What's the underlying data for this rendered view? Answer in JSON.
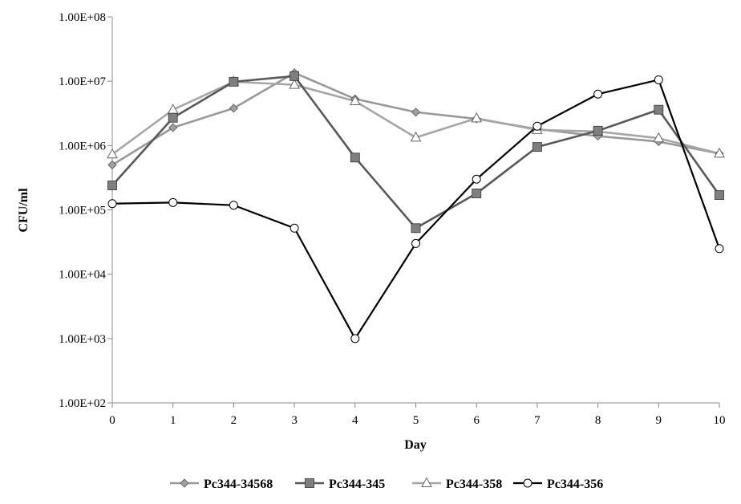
{
  "chart_data": {
    "type": "line",
    "title": "",
    "xlabel": "Day",
    "ylabel": "CFU/ml",
    "x": [
      0,
      1,
      2,
      3,
      4,
      5,
      6,
      7,
      8,
      9,
      10
    ],
    "x_tick_labels": [
      "0",
      "1",
      "2",
      "3",
      "4",
      "5",
      "6",
      "7",
      "8",
      "9",
      "10"
    ],
    "y_scale": "log",
    "ylim": [
      100,
      100000000
    ],
    "y_tick_values": [
      100,
      1000,
      10000,
      100000,
      1000000,
      10000000,
      100000000
    ],
    "y_tick_labels": [
      "1.00E+02",
      "1.00E+03",
      "1.00E+04",
      "1.00E+05",
      "1.00E+06",
      "1.00E+07",
      "1.00E+08"
    ],
    "grid": false,
    "legend_position": "bottom",
    "series": [
      {
        "name": "Pc344-34568",
        "marker": "diamond",
        "color": "#999999",
        "values": [
          500000,
          1900000,
          3800000,
          13500000,
          5300000,
          3300000,
          2600000,
          1800000,
          1400000,
          1150000,
          750000
        ]
      },
      {
        "name": "Pc344-345",
        "marker": "square",
        "color": "#595959",
        "values": [
          240000,
          2700000,
          9800000,
          12000000,
          650000,
          52000,
          180000,
          950000,
          1700000,
          3600000,
          170000
        ]
      },
      {
        "name": "Pc344-358",
        "marker": "triangle",
        "color": "#a6a6a6",
        "values": [
          730000,
          3600000,
          9800000,
          8800000,
          4900000,
          1330000,
          2650000,
          1750000,
          1650000,
          1300000,
          750000
        ]
      },
      {
        "name": "Pc344-356",
        "marker": "circle",
        "color": "#000000",
        "values": [
          125000,
          130000,
          118000,
          52000,
          1000,
          30000,
          300000,
          2000000,
          6300000,
          10500000,
          25000
        ]
      }
    ]
  }
}
